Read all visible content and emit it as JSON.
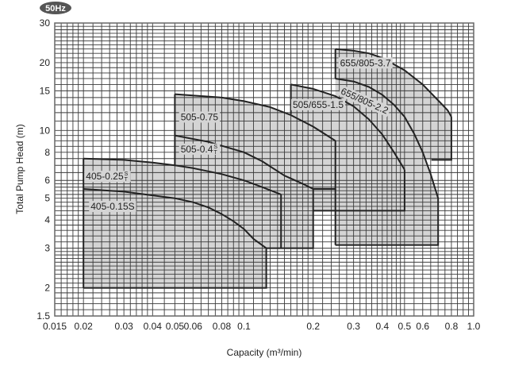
{
  "badge": "50Hz",
  "colors": {
    "region": "#d4d4d4",
    "curve": "#222222",
    "grid": "#3a3a3a",
    "badge": "#555555"
  },
  "chart_data": {
    "type": "line",
    "title": "",
    "xlabel": "Capacity (m³/min)",
    "ylabel": "Total Pump Head (m)",
    "xscale": "log",
    "yscale": "log",
    "xlim": [
      0.015,
      1.0
    ],
    "ylim": [
      1.5,
      30
    ],
    "grid": true,
    "xticks": [
      "0.015",
      "0.02",
      "0.03",
      "0.04",
      "0.05",
      "0.06",
      "0.08",
      "0.1",
      "0.2",
      "0.3",
      "0.4",
      "0.5",
      "0.6",
      "0.8",
      "1.0"
    ],
    "yticks": [
      "1.5",
      "2",
      "3",
      "4",
      "5",
      "6",
      "8",
      "10",
      "15",
      "20",
      "30"
    ],
    "series": [
      {
        "name": "405-0.15S",
        "label": "405-0.15S",
        "label_at": [
          0.0215,
          4.45
        ],
        "points": [
          [
            0.02,
            5.5
          ],
          [
            0.03,
            5.35
          ],
          [
            0.04,
            5.15
          ],
          [
            0.05,
            5.0
          ],
          [
            0.06,
            4.8
          ],
          [
            0.07,
            4.55
          ],
          [
            0.08,
            4.25
          ],
          [
            0.09,
            3.95
          ],
          [
            0.1,
            3.65
          ],
          [
            0.11,
            3.3
          ],
          [
            0.125,
            3.0
          ]
        ],
        "region_bottom": 2.0,
        "region_left": 0.02
      },
      {
        "name": "405-0.25S/T",
        "label": "405-0.25",
        "label_suffix": [
          "S",
          "T"
        ],
        "label_at": [
          0.0205,
          6.05
        ],
        "points": [
          [
            0.02,
            7.5
          ],
          [
            0.03,
            7.4
          ],
          [
            0.04,
            7.2
          ],
          [
            0.05,
            7.0
          ],
          [
            0.06,
            6.8
          ],
          [
            0.08,
            6.4
          ],
          [
            0.1,
            6.0
          ],
          [
            0.12,
            5.6
          ],
          [
            0.145,
            5.2
          ]
        ],
        "region_bottom": 3.0,
        "region_left": 0.02
      },
      {
        "name": "505-0.4S/T",
        "label": "505-0.4",
        "label_suffix": [
          "S",
          "T"
        ],
        "label_at": [
          0.053,
          8.0
        ],
        "points": [
          [
            0.05,
            9.5
          ],
          [
            0.07,
            8.9
          ],
          [
            0.1,
            8.0
          ],
          [
            0.12,
            7.3
          ],
          [
            0.15,
            6.3
          ],
          [
            0.18,
            5.8
          ],
          [
            0.2,
            5.5
          ]
        ],
        "region_bottom": 3.0,
        "region_left": 0.05
      },
      {
        "name": "505-0.75",
        "label": "505-0.75",
        "label_at": [
          0.053,
          11.1
        ],
        "points": [
          [
            0.05,
            14.5
          ],
          [
            0.08,
            14.0
          ],
          [
            0.1,
            13.5
          ],
          [
            0.13,
            12.7
          ],
          [
            0.16,
            11.7
          ],
          [
            0.2,
            10.4
          ],
          [
            0.23,
            9.5
          ],
          [
            0.25,
            9.0
          ]
        ],
        "region_bottom": 5.5,
        "region_left": 0.05
      },
      {
        "name": "505/655-1.5",
        "label": "505/655-1.5",
        "label_at": [
          0.163,
          12.6
        ],
        "points": [
          [
            0.16,
            16.0
          ],
          [
            0.2,
            15.3
          ],
          [
            0.25,
            14.2
          ],
          [
            0.3,
            12.8
          ],
          [
            0.35,
            11.2
          ],
          [
            0.4,
            9.6
          ],
          [
            0.45,
            8.0
          ],
          [
            0.5,
            6.7
          ]
        ],
        "region_bottom": 4.4,
        "region_left": 0.16
      },
      {
        "name": "655/805-2.2",
        "label": "655/805-2.2",
        "label_at": [
          0.262,
          14.6
        ],
        "label_rotate": 24,
        "points": [
          [
            0.25,
            17.0
          ],
          [
            0.3,
            16.5
          ],
          [
            0.35,
            15.6
          ],
          [
            0.4,
            14.4
          ],
          [
            0.45,
            13.0
          ],
          [
            0.5,
            11.5
          ],
          [
            0.55,
            9.7
          ],
          [
            0.6,
            8.0
          ],
          [
            0.65,
            6.4
          ],
          [
            0.7,
            5.0
          ]
        ],
        "region_bottom": 3.1,
        "region_left": 0.25
      },
      {
        "name": "655/805-3.7",
        "label": "655/805-3.7",
        "label_at": [
          0.262,
          19.3
        ],
        "points": [
          [
            0.25,
            23.0
          ],
          [
            0.3,
            22.6
          ],
          [
            0.35,
            22.0
          ],
          [
            0.4,
            21.0
          ],
          [
            0.5,
            18.5
          ],
          [
            0.6,
            16.0
          ],
          [
            0.7,
            13.6
          ],
          [
            0.77,
            12.3
          ],
          [
            0.8,
            11.5
          ]
        ],
        "region_bottom": 7.4,
        "region_left": 0.25
      }
    ],
    "edges": [
      [
        [
          0.02,
          2
        ],
        [
          0.02,
          7.5
        ]
      ],
      [
        [
          0.02,
          2
        ],
        [
          0.125,
          2
        ],
        [
          0.125,
          3.0
        ]
      ],
      [
        [
          0.125,
          3
        ],
        [
          0.2,
          3
        ],
        [
          0.2,
          5.5
        ]
      ],
      [
        [
          0.145,
          5.2
        ],
        [
          0.145,
          3
        ]
      ],
      [
        [
          0.05,
          6.95
        ],
        [
          0.05,
          14.5
        ]
      ],
      [
        [
          0.2,
          5.5
        ],
        [
          0.25,
          5.5
        ],
        [
          0.25,
          9.0
        ]
      ],
      [
        [
          0.16,
          11.8
        ],
        [
          0.16,
          16
        ]
      ],
      [
        [
          0.2,
          4.4
        ],
        [
          0.5,
          4.4
        ],
        [
          0.5,
          6.7
        ]
      ],
      [
        [
          0.25,
          3.1
        ],
        [
          0.7,
          3.1
        ],
        [
          0.7,
          5.0
        ]
      ],
      [
        [
          0.25,
          3.1
        ],
        [
          0.25,
          5.5
        ]
      ],
      [
        [
          0.25,
          17
        ],
        [
          0.25,
          23
        ]
      ],
      [
        [
          0.8,
          11.5
        ],
        [
          0.8,
          7.4
        ],
        [
          0.655,
          7.4
        ]
      ]
    ]
  }
}
